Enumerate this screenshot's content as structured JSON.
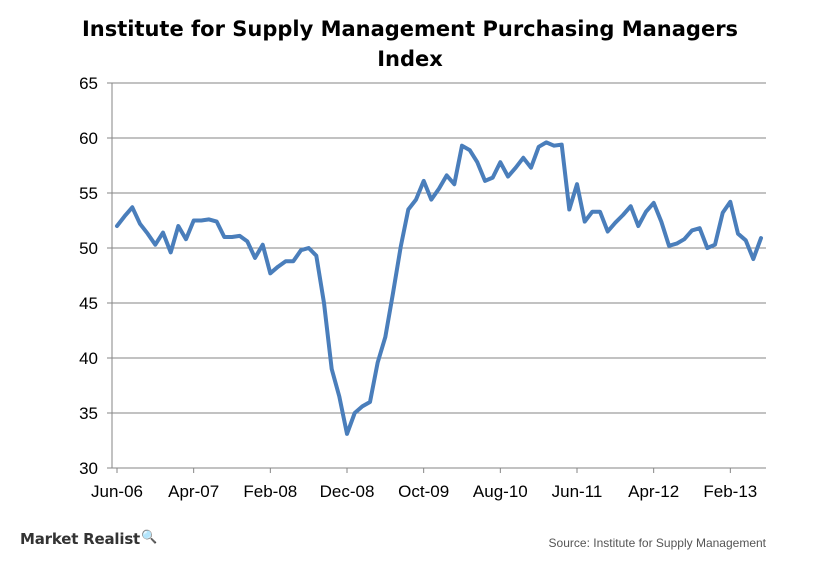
{
  "chart_data": {
    "type": "line",
    "title": "Institute for Supply Management Purchasing Managers Index",
    "xlabel": "",
    "ylabel": "",
    "ylim": [
      30,
      65
    ],
    "yticks": [
      30,
      35,
      40,
      45,
      50,
      55,
      60,
      65
    ],
    "xtick_labels": [
      "Jun-06",
      "Apr-07",
      "Feb-08",
      "Dec-08",
      "Oct-09",
      "Aug-10",
      "Jun-11",
      "Apr-12",
      "Feb-13"
    ],
    "grid": "horizontal",
    "legend": "none",
    "x": [
      "Jun-06",
      "Jul-06",
      "Aug-06",
      "Sep-06",
      "Oct-06",
      "Nov-06",
      "Dec-06",
      "Jan-07",
      "Feb-07",
      "Mar-07",
      "Apr-07",
      "May-07",
      "Jun-07",
      "Jul-07",
      "Aug-07",
      "Sep-07",
      "Oct-07",
      "Nov-07",
      "Dec-07",
      "Jan-08",
      "Feb-08",
      "Mar-08",
      "Apr-08",
      "May-08",
      "Jun-08",
      "Jul-08",
      "Aug-08",
      "Sep-08",
      "Oct-08",
      "Nov-08",
      "Dec-08",
      "Jan-09",
      "Feb-09",
      "Mar-09",
      "Apr-09",
      "May-09",
      "Jun-09",
      "Jul-09",
      "Aug-09",
      "Sep-09",
      "Oct-09",
      "Nov-09",
      "Dec-09",
      "Jan-10",
      "Feb-10",
      "Mar-10",
      "Apr-10",
      "May-10",
      "Jun-10",
      "Jul-10",
      "Aug-10",
      "Sep-10",
      "Oct-10",
      "Nov-10",
      "Dec-10",
      "Jan-11",
      "Feb-11",
      "Mar-11",
      "Apr-11",
      "May-11",
      "Jun-11",
      "Jul-11",
      "Aug-11",
      "Sep-11",
      "Oct-11",
      "Nov-11",
      "Dec-11",
      "Jan-12",
      "Feb-12",
      "Mar-12",
      "Apr-12",
      "May-12",
      "Jun-12",
      "Jul-12",
      "Aug-12",
      "Sep-12",
      "Oct-12",
      "Nov-12",
      "Dec-12",
      "Jan-13",
      "Feb-13",
      "Mar-13",
      "Apr-13",
      "May-13",
      "Jun-13"
    ],
    "series": [
      {
        "color": "#4a7ebb",
        "values": [
          52.0,
          52.9,
          53.7,
          52.2,
          51.3,
          50.3,
          51.4,
          49.6,
          52.0,
          50.8,
          52.5,
          52.5,
          52.6,
          52.4,
          51.0,
          51.0,
          51.1,
          50.6,
          49.1,
          50.3,
          47.7,
          48.3,
          48.8,
          48.8,
          49.8,
          50.0,
          49.3,
          45.0,
          39.0,
          36.5,
          33.1,
          35.0,
          35.6,
          36.0,
          39.6,
          41.9,
          45.9,
          50.1,
          53.5,
          54.4,
          56.1,
          54.4,
          55.4,
          56.6,
          55.8,
          59.3,
          58.9,
          57.8,
          56.1,
          56.4,
          57.8,
          56.5,
          57.3,
          58.2,
          57.3,
          59.2,
          59.6,
          59.3,
          59.4,
          53.5,
          55.8,
          52.4,
          53.3,
          53.3,
          51.5,
          52.3,
          53.0,
          53.8,
          52.0,
          53.3,
          54.1,
          52.4,
          50.2,
          50.4,
          50.8,
          51.6,
          51.8,
          50.0,
          50.3,
          53.2,
          54.2,
          51.3,
          50.7,
          49.0,
          50.9
        ]
      }
    ]
  },
  "footer": {
    "brand": "Market Realist",
    "brand_icon": "magnifier-chart-icon",
    "source": "Source: Institute for Supply Management"
  },
  "colors": {
    "line": "#4a7ebb",
    "grid": "#868686",
    "axis": "#868686"
  }
}
